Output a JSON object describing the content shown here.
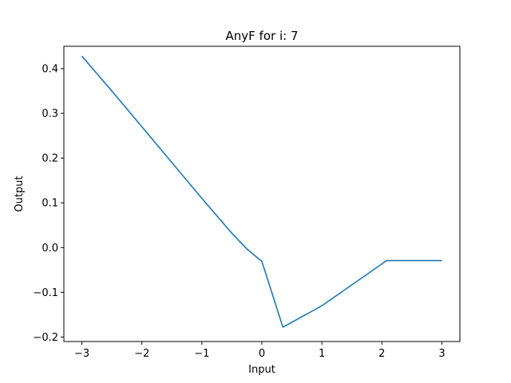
{
  "chart_data": {
    "type": "line",
    "title": "AnyF for i: 7",
    "xlabel": "Input",
    "ylabel": "Output",
    "xlim": [
      -3.3,
      3.3
    ],
    "ylim": [
      -0.21,
      0.45
    ],
    "xticks": [
      -3,
      -2,
      -1,
      0,
      1,
      2,
      3
    ],
    "xtick_labels": [
      "−3",
      "−2",
      "−1",
      "0",
      "1",
      "2",
      "3"
    ],
    "yticks": [
      -0.2,
      -0.1,
      0.0,
      0.1,
      0.2,
      0.3,
      0.4
    ],
    "ytick_labels": [
      "−0.2",
      "−0.1",
      "0.0",
      "0.1",
      "0.2",
      "0.3",
      "0.4"
    ],
    "grid": false,
    "series": [
      {
        "color": "#1f77b4",
        "x": [
          -3.0,
          -2.5,
          -2.0,
          -1.5,
          -1.0,
          -0.5,
          -0.25,
          0.0,
          0.35,
          1.0,
          1.45,
          2.08,
          2.5,
          3.0
        ],
        "y": [
          0.428,
          0.35,
          0.27,
          0.19,
          0.11,
          0.032,
          -0.003,
          -0.031,
          -0.178,
          -0.13,
          -0.088,
          -0.029,
          -0.029,
          -0.029
        ]
      }
    ]
  }
}
